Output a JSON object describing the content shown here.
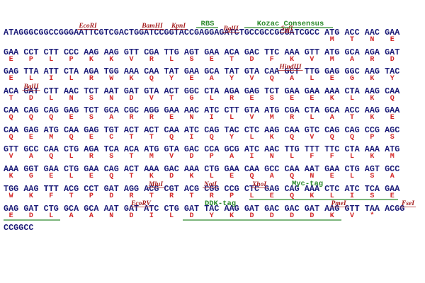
{
  "lines": [
    {
      "prefix": "ATAGGGCGGCCGGGAATTCGTCGACTGGATCCGGTACCGAGGAGATCTGCCGCCGCGATCGCC",
      "codons": [
        "ATG",
        "ACC",
        "AAC",
        "GAA"
      ],
      "aa": [
        "M",
        "T",
        "N",
        "E"
      ]
    },
    {
      "codons": [
        "GAA",
        "CCT",
        "CTT",
        "CCC",
        "AAG",
        "AAG",
        "GTT",
        "CGA",
        "TTG",
        "AGT",
        "GAA",
        "ACA",
        "GAC",
        "TTC",
        "AAA",
        "GTT",
        "ATG",
        "GCA",
        "AGA",
        "GAT"
      ],
      "aa": [
        "E",
        "P",
        "L",
        "P",
        "K",
        "K",
        "V",
        "R",
        "L",
        "S",
        "E",
        "T",
        "D",
        "F",
        "K",
        "V",
        "M",
        "A",
        "R",
        "D"
      ]
    },
    {
      "codons": [
        "GAG",
        "TTA",
        "ATT",
        "CTA",
        "AGA",
        "TGG",
        "AAA",
        "CAA",
        "TAT",
        "GAA",
        "GCA",
        "TAT",
        "GTA",
        "CAA",
        "GCT",
        "TTG",
        "GAG",
        "GGC",
        "AAG",
        "TAC"
      ],
      "aa": [
        "E",
        "L",
        "I",
        "L",
        "R",
        "W",
        "K",
        "Q",
        "Y",
        "E",
        "A",
        "Y",
        "V",
        "Q",
        "A",
        "L",
        "E",
        "G",
        "K",
        "Y"
      ]
    },
    {
      "codons": [
        "ACA",
        "GAT",
        "CTT",
        "AAC",
        "TCT",
        "AAT",
        "GAT",
        "GTA",
        "ACT",
        "GGC",
        "CTA",
        "AGA",
        "GAG",
        "TCT",
        "GAA",
        "GAA",
        "AAA",
        "CTA",
        "AAG",
        "CAA"
      ],
      "aa": [
        "T",
        "D",
        "L",
        "N",
        "S",
        "N",
        "D",
        "V",
        "T",
        "G",
        "L",
        "R",
        "E",
        "S",
        "E",
        "E",
        "K",
        "L",
        "K",
        "Q"
      ]
    },
    {
      "codons": [
        "CAA",
        "CAG",
        "CAG",
        "GAG",
        "TCT",
        "GCA",
        "CGC",
        "AGG",
        "GAA",
        "AAC",
        "ATC",
        "CTT",
        "GTA",
        "ATG",
        "CGA",
        "CTA",
        "GCA",
        "ACC",
        "AAG",
        "GAA"
      ],
      "aa": [
        "Q",
        "Q",
        "Q",
        "E",
        "S",
        "A",
        "R",
        "R",
        "E",
        "N",
        "I",
        "L",
        "V",
        "M",
        "R",
        "L",
        "A",
        "T",
        "K",
        "E"
      ]
    },
    {
      "codons": [
        "CAA",
        "GAG",
        "ATG",
        "CAA",
        "GAG",
        "TGT",
        "ACT",
        "ACT",
        "CAA",
        "ATC",
        "CAG",
        "TAC",
        "CTC",
        "AAG",
        "CAA",
        "GTC",
        "CAG",
        "CAG",
        "CCG",
        "AGC"
      ],
      "aa": [
        "Q",
        "E",
        "M",
        "Q",
        "E",
        "C",
        "T",
        "T",
        "Q",
        "I",
        "Q",
        "Y",
        "L",
        "K",
        "Q",
        "V",
        "Q",
        "Q",
        "P",
        "S"
      ]
    },
    {
      "codons": [
        "GTT",
        "GCC",
        "CAA",
        "CTG",
        "AGA",
        "TCA",
        "ACA",
        "ATG",
        "GTA",
        "GAC",
        "CCA",
        "GCG",
        "ATC",
        "AAC",
        "TTG",
        "TTT",
        "TTC",
        "CTA",
        "AAA",
        "ATG"
      ],
      "aa": [
        "V",
        "A",
        "Q",
        "L",
        "R",
        "S",
        "T",
        "M",
        "V",
        "D",
        "P",
        "A",
        "I",
        "N",
        "L",
        "F",
        "F",
        "L",
        "K",
        "M"
      ]
    },
    {
      "codons": [
        "AAA",
        "GGT",
        "GAA",
        "CTG",
        "GAA",
        "CAG",
        "ACT",
        "AAA",
        "GAC",
        "AAA",
        "CTG",
        "GAA",
        "CAA",
        "GCC",
        "CAA",
        "AAT",
        "GAA",
        "CTG",
        "AGT",
        "GCC"
      ],
      "aa": [
        "K",
        "G",
        "E",
        "L",
        "E",
        "Q",
        "T",
        "K",
        "D",
        "K",
        "L",
        "E",
        "Q",
        "A",
        "Q",
        "N",
        "E",
        "L",
        "S",
        "A"
      ]
    },
    {
      "codons": [
        "TGG",
        "AAG",
        "TTT",
        "ACG",
        "CCT",
        "GAT",
        "AGG",
        "ACG",
        "CGT",
        "ACG",
        "CGG",
        "CCG",
        "CTC",
        "GAG",
        "CAG",
        "AAA",
        "CTC",
        "ATC",
        "TCA",
        "GAA"
      ],
      "aa": [
        "W",
        "K",
        "F",
        "T",
        "P",
        "D",
        "R",
        "T",
        "R",
        "T",
        "R",
        "P",
        "L",
        "E",
        "Q",
        "K",
        "L",
        "I",
        "S",
        "E"
      ]
    },
    {
      "codons": [
        "GAG",
        "GAT",
        "CTG",
        "GCA",
        "GCA",
        "AAT",
        "GAT",
        "ATC",
        "CTG",
        "GAT",
        "TAC",
        "AAG",
        "GAT",
        "GAC",
        "GAC",
        "GAT",
        "AAG",
        "GTT",
        "TAA"
      ],
      "aa": [
        "E",
        "D",
        "L",
        "A",
        "A",
        "N",
        "D",
        "I",
        "L",
        "D",
        "Y",
        "K",
        "D",
        "D",
        "D",
        "D",
        "K",
        "V",
        "*"
      ],
      "suffix": "ACGG"
    },
    {
      "prefix": "CCGGCC"
    }
  ],
  "restriction_sites": [
    "EcoRI",
    "BamHI",
    "KpnI",
    "BglII",
    "SgfI",
    "HindIII",
    "BglII",
    "MluI",
    "NotI",
    "XhoI",
    "EcoRV",
    "PmeI",
    "FseI"
  ],
  "tags": [
    "RBS",
    "Kozac Consensus",
    "Myc-tag",
    "DDK-tag"
  ]
}
